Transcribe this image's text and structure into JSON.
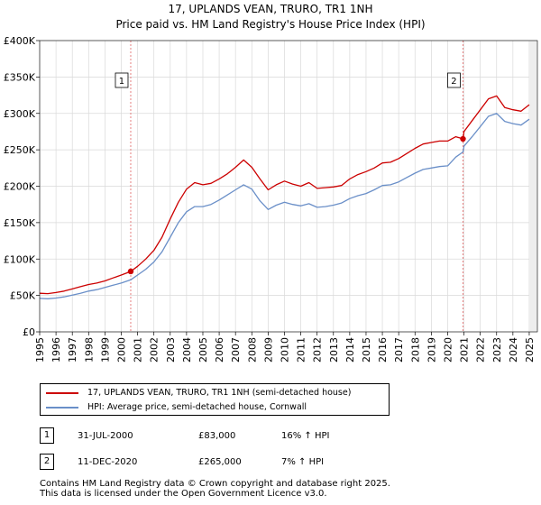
{
  "chart_data": {
    "type": "line",
    "title": "17, UPLANDS VEAN, TRURO, TR1 1NH",
    "subtitle": "Price paid vs. HM Land Registry's House Price Index (HPI)",
    "xlabel": "",
    "ylabel": "",
    "xlim": [
      1995,
      2025.5
    ],
    "ylim": [
      0,
      400000
    ],
    "y_ticks": [
      0,
      50000,
      100000,
      150000,
      200000,
      250000,
      300000,
      350000,
      400000
    ],
    "y_tick_labels": [
      "£0",
      "£50K",
      "£100K",
      "£150K",
      "£200K",
      "£250K",
      "£300K",
      "£350K",
      "£400K"
    ],
    "x_ticks": [
      "1995",
      "1996",
      "1997",
      "1998",
      "1999",
      "2000",
      "2001",
      "2002",
      "2003",
      "2004",
      "2005",
      "2006",
      "2007",
      "2008",
      "2009",
      "2010",
      "2011",
      "2012",
      "2013",
      "2014",
      "2015",
      "2016",
      "2017",
      "2018",
      "2019",
      "2020",
      "2021",
      "2022",
      "2023",
      "2024",
      "2025"
    ],
    "grid": true,
    "series": [
      {
        "name": "17, UPLANDS VEAN, TRURO, TR1 1NH (semi-detached house)",
        "color": "#cc0000",
        "x": [
          1995,
          1995.5,
          1996,
          1996.5,
          1997,
          1997.5,
          1998,
          1998.5,
          1999,
          1999.5,
          2000,
          2000.58,
          2001,
          2001.5,
          2002,
          2002.5,
          2003,
          2003.5,
          2004,
          2004.5,
          2005,
          2005.5,
          2006,
          2006.5,
          2007,
          2007.5,
          2008,
          2008.5,
          2009,
          2009.5,
          2010,
          2010.5,
          2011,
          2011.5,
          2012,
          2012.5,
          2013,
          2013.5,
          2014,
          2014.5,
          2015,
          2015.5,
          2016,
          2016.5,
          2017,
          2017.5,
          2018,
          2018.5,
          2019,
          2019.5,
          2020,
          2020.5,
          2020.94,
          2021,
          2021.5,
          2022,
          2022.5,
          2023,
          2023.5,
          2024,
          2024.5,
          2025
        ],
        "values": [
          53000,
          52500,
          54000,
          56000,
          59000,
          62000,
          65000,
          67000,
          70000,
          74000,
          78000,
          83000,
          90000,
          100000,
          112000,
          130000,
          155000,
          178000,
          196000,
          205000,
          202000,
          204000,
          210000,
          217000,
          226000,
          236000,
          226000,
          210000,
          195000,
          202000,
          207000,
          203000,
          200000,
          205000,
          197000,
          198000,
          199000,
          201000,
          210000,
          216000,
          220000,
          225000,
          232000,
          233000,
          238000,
          245000,
          252000,
          258000,
          260000,
          262000,
          262000,
          268000,
          265000,
          275000,
          290000,
          305000,
          320000,
          324000,
          308000,
          305000,
          303000,
          312000
        ]
      },
      {
        "name": "HPI: Average price, semi-detached house, Cornwall",
        "color": "#6a8fc8",
        "x": [
          1995,
          1995.5,
          1996,
          1996.5,
          1997,
          1997.5,
          1998,
          1998.5,
          1999,
          1999.5,
          2000,
          2000.58,
          2001,
          2001.5,
          2002,
          2002.5,
          2003,
          2003.5,
          2004,
          2004.5,
          2005,
          2005.5,
          2006,
          2006.5,
          2007,
          2007.5,
          2008,
          2008.5,
          2009,
          2009.5,
          2010,
          2010.5,
          2011,
          2011.5,
          2012,
          2012.5,
          2013,
          2013.5,
          2014,
          2014.5,
          2015,
          2015.5,
          2016,
          2016.5,
          2017,
          2017.5,
          2018,
          2018.5,
          2019,
          2019.5,
          2020,
          2020.5,
          2020.94,
          2021,
          2021.5,
          2022,
          2022.5,
          2023,
          2023.5,
          2024,
          2024.5,
          2025
        ],
        "values": [
          46000,
          45500,
          46500,
          48000,
          50500,
          53000,
          56000,
          58000,
          61000,
          64000,
          67000,
          71500,
          78000,
          86000,
          96000,
          110000,
          130000,
          150000,
          165000,
          172000,
          172000,
          175000,
          181000,
          188000,
          195000,
          202000,
          196000,
          180000,
          168000,
          174000,
          178000,
          175000,
          173000,
          176000,
          171000,
          172000,
          174000,
          177000,
          183000,
          187000,
          190000,
          195000,
          201000,
          202000,
          206000,
          212000,
          218000,
          223000,
          225000,
          227000,
          228000,
          240000,
          247000,
          255000,
          268000,
          282000,
          296000,
          300000,
          289000,
          286000,
          284000,
          292000
        ]
      }
    ],
    "annotations": [
      {
        "label": "1",
        "x": 2000.58,
        "value": 83000
      },
      {
        "label": "2",
        "x": 2020.94,
        "value": 265000
      }
    ]
  },
  "legend": {
    "entries": [
      {
        "label": "17, UPLANDS VEAN, TRURO, TR1 1NH (semi-detached house)",
        "color": "#cc0000"
      },
      {
        "label": "HPI: Average price, semi-detached house, Cornwall",
        "color": "#6a8fc8"
      }
    ]
  },
  "transactions": [
    {
      "num": "1",
      "date": "31-JUL-2000",
      "price": "£83,000",
      "hpi": "16% ↑ HPI"
    },
    {
      "num": "2",
      "date": "11-DEC-2020",
      "price": "£265,000",
      "hpi": "7% ↑ HPI"
    }
  ],
  "footer": {
    "line1": "Contains HM Land Registry data © Crown copyright and database right 2025.",
    "line2": "This data is licensed under the Open Government Licence v3.0."
  }
}
